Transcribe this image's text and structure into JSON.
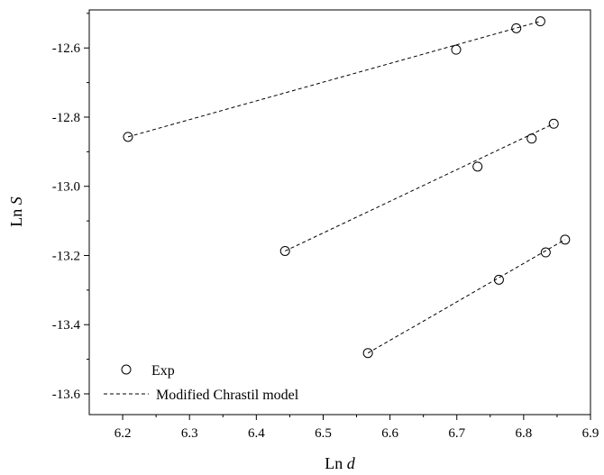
{
  "chart_data": {
    "type": "scatter",
    "xlabel": {
      "prefix": "Ln ",
      "variable": "d"
    },
    "ylabel": {
      "prefix": "Ln ",
      "variable": "S"
    },
    "xlim": [
      6.15,
      6.9
    ],
    "ylim": [
      -13.66,
      -12.49
    ],
    "xticks": [
      "6.2",
      "6.3",
      "6.4",
      "6.5",
      "6.6",
      "6.7",
      "6.8",
      "6.9"
    ],
    "yticks": [
      "-13.6",
      "-13.4",
      "-13.2",
      "-13.0",
      "-12.8",
      "-12.6"
    ],
    "xtick_values": [
      6.2,
      6.3,
      6.4,
      6.5,
      6.6,
      6.7,
      6.8,
      6.9
    ],
    "ytick_values": [
      -13.6,
      -13.4,
      -13.2,
      -13.0,
      -12.8,
      -12.6
    ],
    "grid": false,
    "legend_position": "bottom-left",
    "legend": [
      {
        "label": "Exp",
        "marker": "open-circle"
      },
      {
        "label": "Modified Chrastil model",
        "marker": "dashed-line"
      }
    ],
    "series": [
      {
        "points": [
          {
            "x": 6.208,
            "y": -12.857
          },
          {
            "x": 6.699,
            "y": -12.605
          },
          {
            "x": 6.789,
            "y": -12.543
          },
          {
            "x": 6.825,
            "y": -12.523
          }
        ],
        "fit": [
          [
            6.208,
            -12.857
          ],
          [
            6.825,
            -12.523
          ]
        ]
      },
      {
        "points": [
          {
            "x": 6.443,
            "y": -13.187
          },
          {
            "x": 6.731,
            "y": -12.943
          },
          {
            "x": 6.812,
            "y": -12.862
          },
          {
            "x": 6.845,
            "y": -12.819
          }
        ],
        "fit": [
          [
            6.443,
            -13.187
          ],
          [
            6.845,
            -12.819
          ]
        ]
      },
      {
        "points": [
          {
            "x": 6.567,
            "y": -13.482
          },
          {
            "x": 6.763,
            "y": -13.27
          },
          {
            "x": 6.833,
            "y": -13.191
          },
          {
            "x": 6.862,
            "y": -13.154
          }
        ],
        "fit": [
          [
            6.567,
            -13.482
          ],
          [
            6.862,
            -13.154
          ]
        ]
      }
    ]
  }
}
